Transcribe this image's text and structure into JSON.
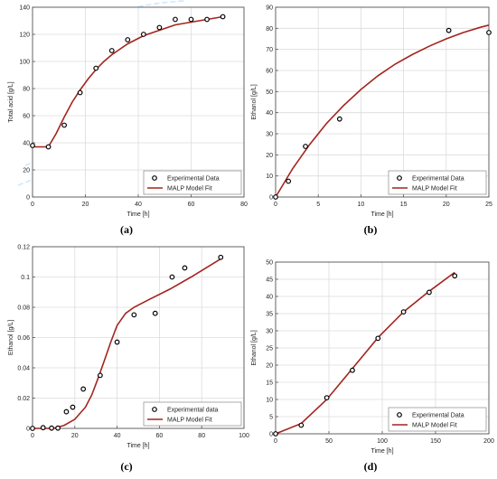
{
  "chart_data": [
    {
      "panel": "(a)",
      "type": "scatter",
      "xlabel": "Time [h]",
      "ylabel": "Total acid [g/L]",
      "xlim": [
        0,
        80
      ],
      "ylim": [
        0,
        140
      ],
      "xticks": [
        0,
        20,
        40,
        60,
        80
      ],
      "yticks": [
        0,
        20,
        40,
        60,
        80,
        100,
        120,
        140
      ],
      "legend_position": "bottom-right",
      "grid": true,
      "series": [
        {
          "name": "Experimental Data",
          "type": "scatter",
          "x": [
            0,
            6,
            12,
            18,
            24,
            30,
            36,
            42,
            48,
            54,
            60,
            66,
            72
          ],
          "y": [
            38,
            37,
            53,
            77,
            95,
            108,
            116,
            120,
            125,
            131,
            131,
            131,
            133
          ]
        },
        {
          "name": "MALP Model Fit",
          "type": "line",
          "x": [
            0,
            6,
            9,
            12,
            15,
            18,
            21,
            24,
            27,
            30,
            33,
            36,
            39,
            42,
            45,
            48,
            51,
            54,
            57,
            60,
            63,
            66,
            69,
            72
          ],
          "y": [
            37,
            37,
            47,
            59,
            70,
            79,
            87,
            94,
            100,
            105,
            109,
            113,
            116,
            119,
            121,
            123,
            125,
            127,
            128,
            129,
            130,
            131,
            132,
            133
          ]
        }
      ]
    },
    {
      "panel": "(b)",
      "type": "scatter",
      "xlabel": "Time [h]",
      "ylabel": "Ethanol [g/L]",
      "xlim": [
        0,
        25
      ],
      "ylim": [
        0,
        90
      ],
      "xticks": [
        0,
        5,
        10,
        15,
        20,
        25
      ],
      "yticks": [
        0,
        10,
        20,
        30,
        40,
        50,
        60,
        70,
        80,
        90
      ],
      "legend_position": "bottom-right",
      "grid": true,
      "series": [
        {
          "name": "Experimental Data",
          "type": "scatter",
          "x": [
            0,
            1.5,
            3.5,
            7.5,
            20.3,
            25
          ],
          "y": [
            0,
            7.5,
            24,
            37,
            79,
            78
          ]
        },
        {
          "name": "MALP Model Fit",
          "type": "line",
          "x": [
            0,
            2,
            4,
            6,
            8,
            10,
            12,
            14,
            16,
            18,
            20,
            22,
            24,
            25
          ],
          "y": [
            0,
            13.5,
            25,
            35,
            43.5,
            51,
            57.5,
            63,
            67.5,
            71.5,
            75,
            78,
            80.5,
            81.5
          ]
        }
      ]
    },
    {
      "panel": "(c)",
      "type": "scatter",
      "xlabel": "Time [h]",
      "ylabel": "Ethanol [g/L]",
      "xlim": [
        0,
        100
      ],
      "ylim": [
        0,
        0.12
      ],
      "xticks": [
        0,
        20,
        40,
        60,
        80,
        100
      ],
      "yticks": [
        0,
        0.02,
        0.04,
        0.06,
        0.08,
        0.1,
        0.12
      ],
      "legend_position": "bottom-right",
      "grid": true,
      "series": [
        {
          "name": "Experimental data",
          "type": "scatter",
          "x": [
            0,
            5,
            9,
            12,
            16,
            19,
            24,
            32,
            40,
            48,
            58,
            66,
            72,
            89
          ],
          "y": [
            0,
            0.0005,
            0.0002,
            0.0002,
            0.011,
            0.014,
            0.026,
            0.035,
            0.057,
            0.075,
            0.076,
            0.1,
            0.106,
            0.113
          ]
        },
        {
          "name": "MALP Model Fit",
          "type": "line",
          "x": [
            0,
            10,
            15,
            20,
            25,
            28,
            31,
            34,
            37,
            40,
            44,
            48,
            55,
            65,
            75,
            89
          ],
          "y": [
            0,
            0,
            0.002,
            0.006,
            0.014,
            0.022,
            0.033,
            0.045,
            0.057,
            0.068,
            0.076,
            0.08,
            0.085,
            0.092,
            0.1,
            0.112
          ]
        }
      ]
    },
    {
      "panel": "(d)",
      "type": "scatter",
      "xlabel": "Time [h]",
      "ylabel": "Ethanol [g/L]",
      "xlim": [
        0,
        200
      ],
      "ylim": [
        0,
        50
      ],
      "xticks": [
        0,
        50,
        100,
        150,
        200
      ],
      "yticks": [
        0,
        5,
        10,
        15,
        20,
        25,
        30,
        35,
        40,
        45,
        50
      ],
      "legend_position": "bottom-right",
      "grid": true,
      "series": [
        {
          "name": "Experimental Data",
          "type": "scatter",
          "x": [
            0,
            24,
            48,
            72,
            96,
            120,
            144,
            168
          ],
          "y": [
            0,
            2.5,
            10.5,
            18.5,
            27.8,
            35.5,
            41.2,
            46
          ]
        },
        {
          "name": "MALP Model Fit",
          "type": "line",
          "x": [
            0,
            24,
            48,
            72,
            96,
            120,
            144,
            168
          ],
          "y": [
            0,
            3,
            10,
            19,
            28,
            35.5,
            41.5,
            47
          ]
        }
      ]
    }
  ],
  "colors": {
    "fit_line": "#a3241e",
    "marker_edge": "#000000",
    "grid": "#dcdcdc",
    "axis": "#555555",
    "watermark": "#cfe7ff"
  }
}
